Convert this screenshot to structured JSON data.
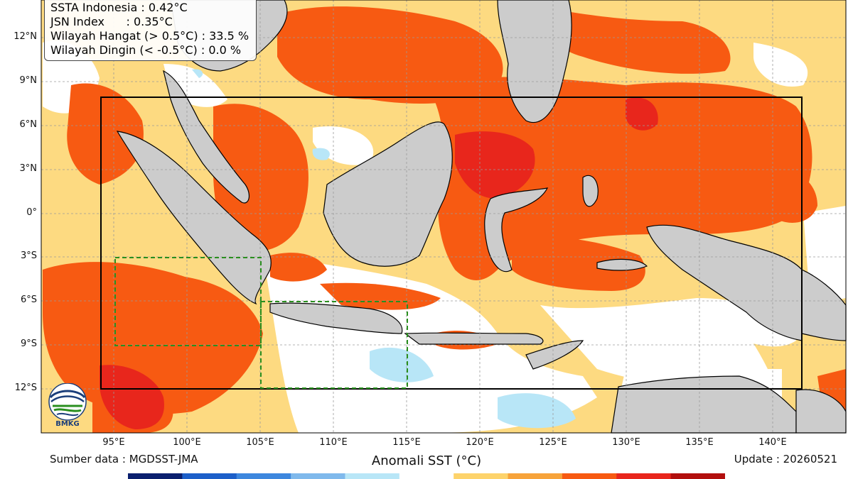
{
  "stats": {
    "line1": "SSTA Indonesia : 0.42°C",
    "line2": "JSN Index      : 0.35°C",
    "line3": "Wilayah Hangat (> 0.5°C) : 33.5 %",
    "line4": "Wilayah Dingin (< -0.5°C) : 0.0 %"
  },
  "lat_labels": [
    "12°N",
    "9°N",
    "6°N",
    "3°N",
    "0°",
    "3°S",
    "6°S",
    "9°S",
    "12°S"
  ],
  "lon_labels": [
    "95°E",
    "100°E",
    "105°E",
    "110°E",
    "115°E",
    "120°E",
    "125°E",
    "130°E",
    "135°E",
    "140°E"
  ],
  "source": "Sumber data : MGDSST-JMA",
  "title": "Anomali SST (°C)",
  "update": "Update : 20260521",
  "logo_text": "BMKG",
  "colors": {
    "very_warm": "#f75a12",
    "warm": "#fdd36b",
    "hot": "#e8261c",
    "dark_hot": "#b20f0e",
    "neutral": "#ffffff",
    "cool": "#b8e6f7",
    "land": "#cccccc",
    "box_main": "#000000",
    "box_sub": "#2a8f1f"
  },
  "colorbar_colors": [
    "#0a1f6e",
    "#1c5fc9",
    "#3d87de",
    "#7fb9ec",
    "#b8e6f7",
    "#ffffff",
    "#fdd36b",
    "#f7a33a",
    "#f75a12",
    "#e8261c",
    "#b20f0e"
  ]
}
